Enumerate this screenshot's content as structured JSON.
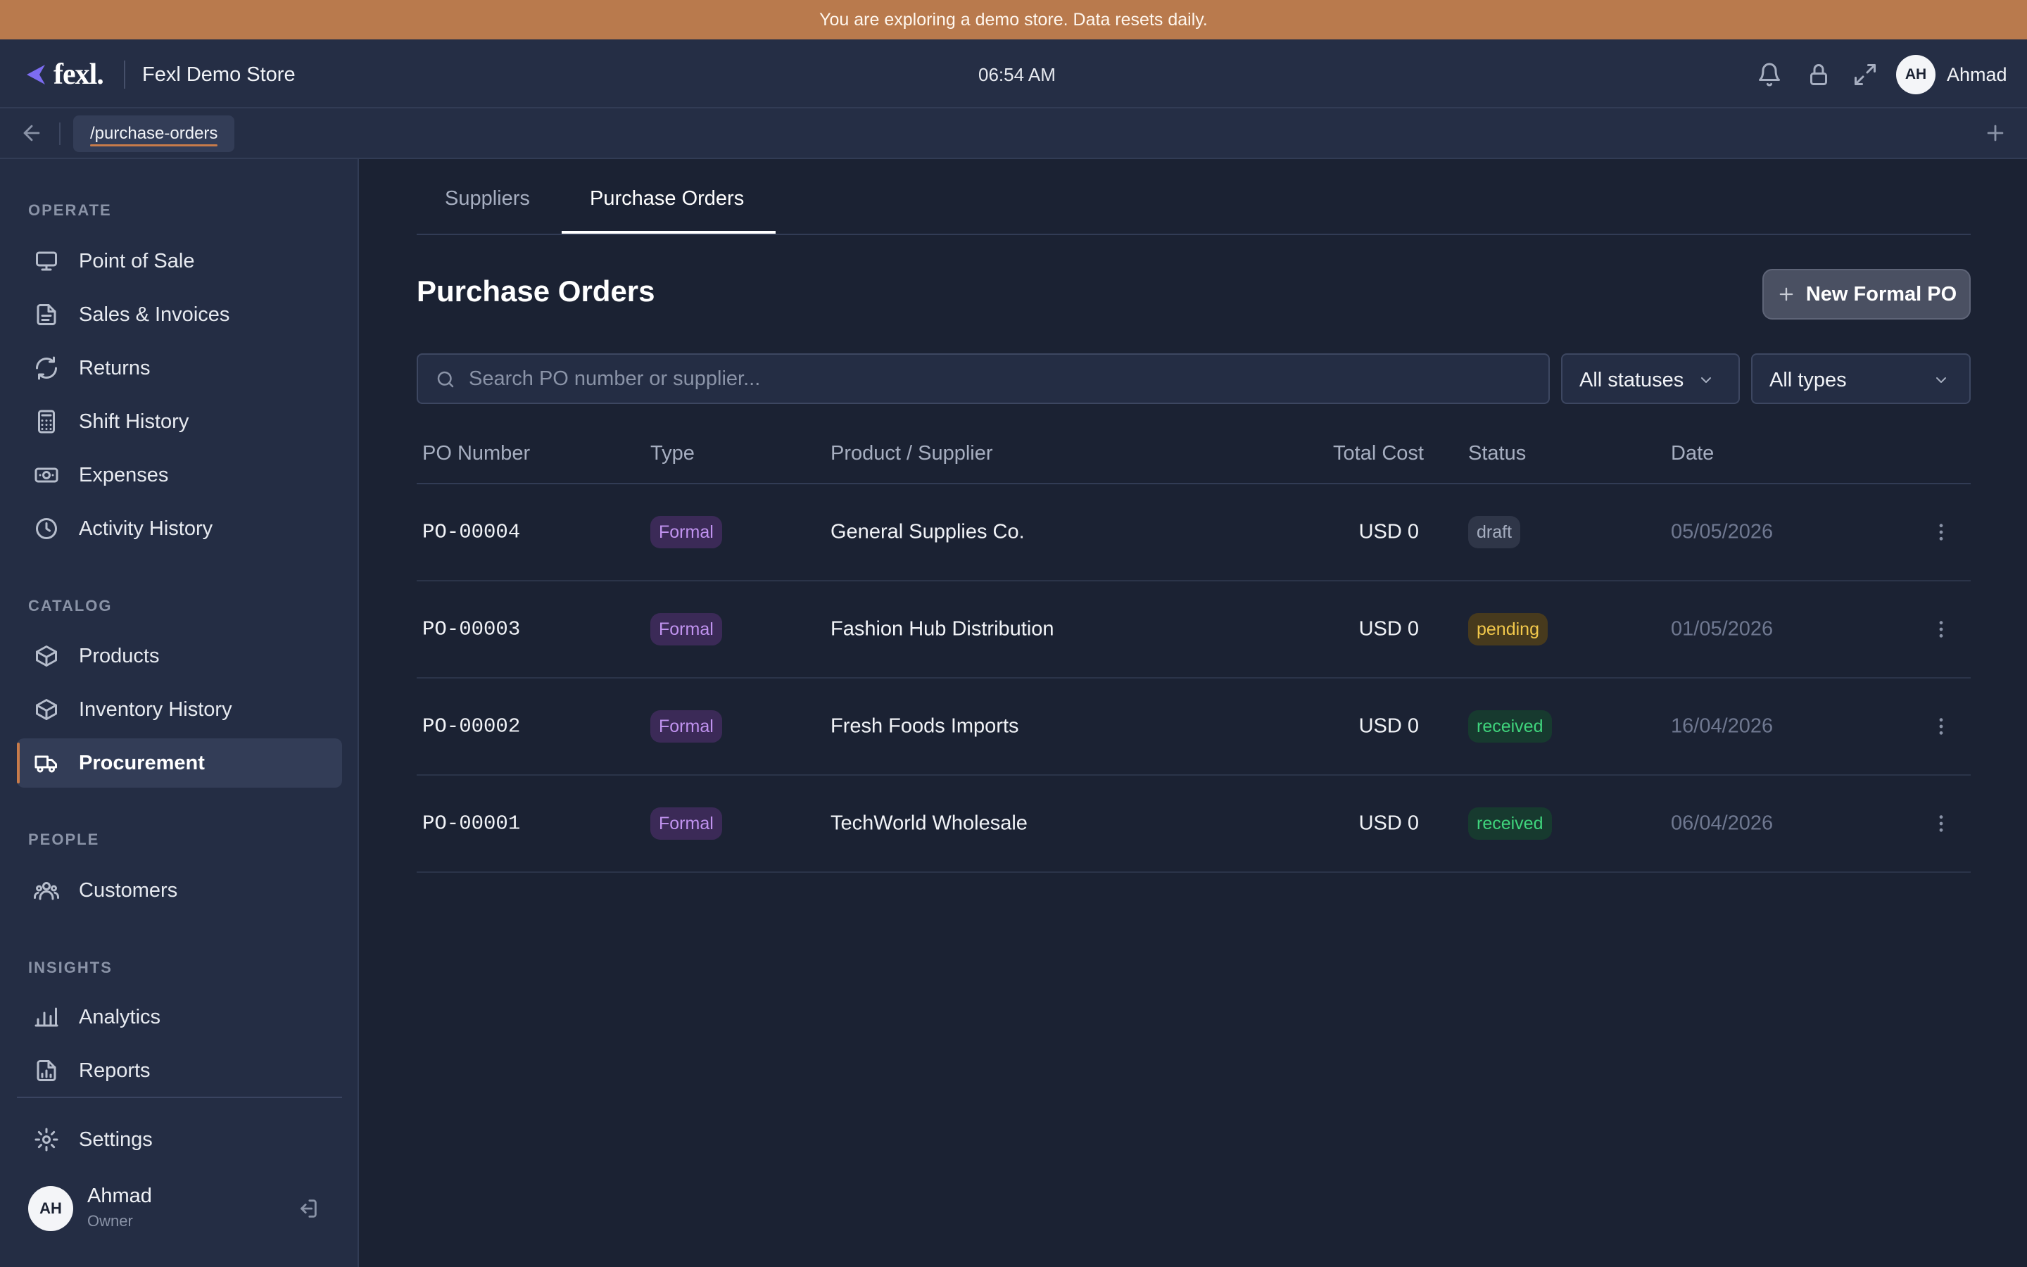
{
  "banner": {
    "text": "You are exploring a demo store. Data resets daily."
  },
  "header": {
    "logo_text": "fexl.",
    "store_name": "Fexl Demo Store",
    "time": "06:54 AM",
    "user_initials": "AH",
    "user_name": "Ahmad"
  },
  "pathbar": {
    "current_path": "/purchase-orders"
  },
  "sidebar": {
    "sections": {
      "operate": "OPERATE",
      "catalog": "CATALOG",
      "people": "PEOPLE",
      "insights": "INSIGHTS"
    },
    "items": {
      "pos": "Point of Sale",
      "sales": "Sales & Invoices",
      "returns": "Returns",
      "shift": "Shift History",
      "expenses": "Expenses",
      "activity": "Activity History",
      "products": "Products",
      "inventory": "Inventory History",
      "procurement": "Procurement",
      "customers": "Customers",
      "analytics": "Analytics",
      "reports": "Reports",
      "settings": "Settings"
    },
    "active_item": "procurement",
    "user": {
      "initials": "AH",
      "name": "Ahmad",
      "role": "Owner"
    }
  },
  "tabs": {
    "suppliers": "Suppliers",
    "purchase_orders": "Purchase Orders",
    "active": "purchase_orders"
  },
  "main": {
    "title": "Purchase Orders",
    "new_button": "New Formal PO",
    "search_placeholder": "Search PO number or supplier...",
    "status_filter": "All statuses",
    "type_filter": "All types"
  },
  "table": {
    "columns": {
      "po_number": "PO Number",
      "type": "Type",
      "product_supplier": "Product / Supplier",
      "total_cost": "Total Cost",
      "status": "Status",
      "date": "Date"
    },
    "rows": [
      {
        "po_number": "PO-00004",
        "type": "Formal",
        "supplier": "General Supplies Co.",
        "total_cost": "USD 0",
        "status": "draft",
        "date": "05/05/2026"
      },
      {
        "po_number": "PO-00003",
        "type": "Formal",
        "supplier": "Fashion Hub Distribution",
        "total_cost": "USD 0",
        "status": "pending",
        "date": "01/05/2026"
      },
      {
        "po_number": "PO-00002",
        "type": "Formal",
        "supplier": "Fresh Foods Imports",
        "total_cost": "USD 0",
        "status": "received",
        "date": "16/04/2026"
      },
      {
        "po_number": "PO-00001",
        "type": "Formal",
        "supplier": "TechWorld Wholesale",
        "total_cost": "USD 0",
        "status": "received",
        "date": "06/04/2026"
      }
    ]
  },
  "colors": {
    "banner": "#b97a4d",
    "accent": "#c87b4a",
    "background": "#1b2233",
    "sidebar": "#242d44",
    "status_draft": "#a6aec0",
    "status_pending": "#f2c84b",
    "status_received": "#3fd47c",
    "type_formal": "#c193f0"
  },
  "icons": {
    "header": [
      "bell-icon",
      "lock-icon",
      "fullscreen-icon"
    ],
    "pathbar": [
      "back-arrow-icon",
      "plus-icon"
    ],
    "row_action": "kebab-menu-icon"
  }
}
